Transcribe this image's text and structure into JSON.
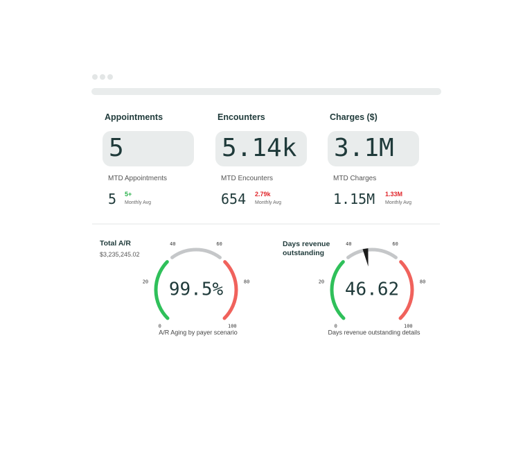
{
  "kpis": [
    {
      "title": "Appointments",
      "value": "5",
      "mtd_label": "MTD Appointments",
      "mtd_value": "5",
      "avg_value": "5+",
      "avg_label": "Monthly Avg",
      "avg_color": "#2bb24c"
    },
    {
      "title": "Encounters",
      "value": "5.14k",
      "mtd_label": "MTD Encounters",
      "mtd_value": "654",
      "avg_value": "2.79k",
      "avg_label": "Monthly Avg",
      "avg_color": "#e0262b"
    },
    {
      "title": "Charges ($)",
      "value": "3.1M",
      "mtd_label": "MTD Charges",
      "mtd_value": "1.15M",
      "avg_value": "1.33M",
      "avg_label": "Monthly Avg",
      "avg_color": "#e0262b"
    }
  ],
  "gauges": [
    {
      "title": "Total A/R",
      "subtitle": "$3,235,245.02",
      "display": "99.5%",
      "range": [
        0,
        100
      ],
      "ticks": [
        0,
        20,
        40,
        60,
        80,
        100
      ],
      "caption": "A/R Aging by payer scenario"
    },
    {
      "title": "Days revenue outstanding",
      "value": 46.62,
      "range": [
        0,
        100
      ],
      "ticks": [
        0,
        20,
        40,
        60,
        80,
        100
      ],
      "caption": "Days revenue outstanding details"
    }
  ]
}
